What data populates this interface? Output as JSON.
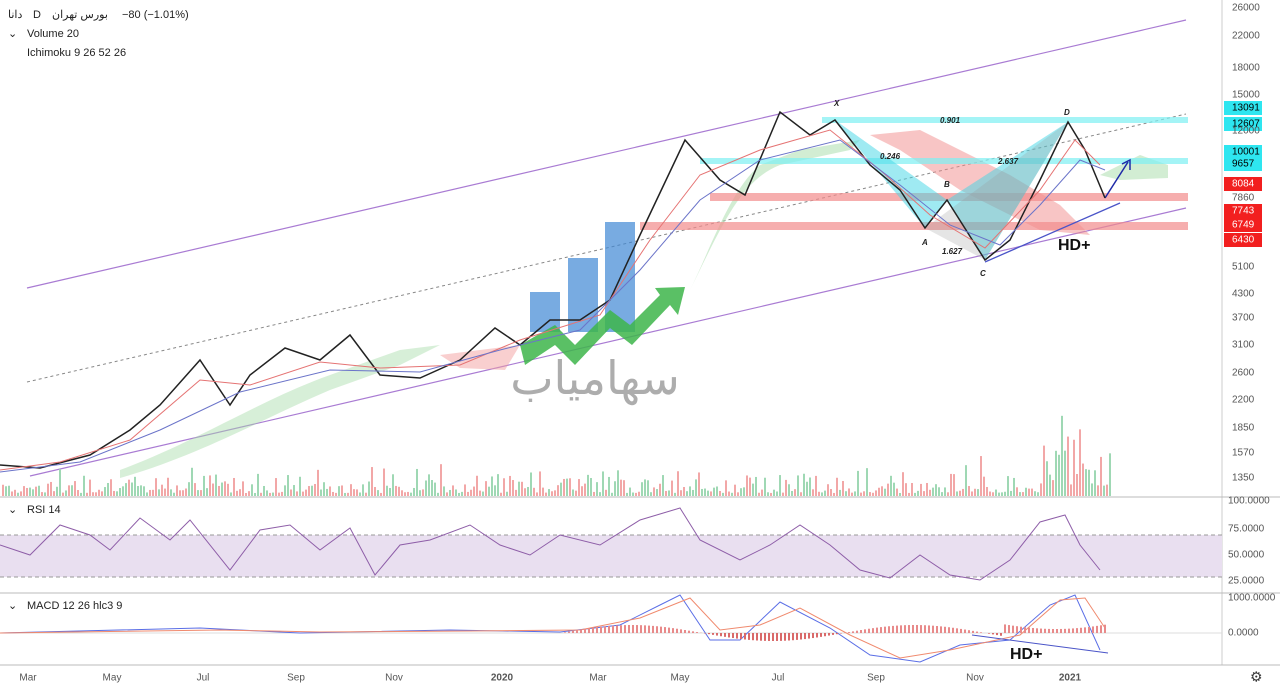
{
  "header": {
    "symbol": "دانا",
    "interval": "D",
    "exchange": "بورس تهران",
    "change": "−80 (−1.01%)"
  },
  "indicators": [
    "Volume 20",
    "Ichimoku 9 26 52 26"
  ],
  "price_axis": [
    {
      "label": "26000"
    },
    {
      "label": "22000"
    },
    {
      "label": "18000"
    },
    {
      "label": "15000"
    },
    {
      "label": "13091",
      "color": "#2ee6f0"
    },
    {
      "label": "12607",
      "color": "#2ee6f0"
    },
    {
      "label": "12000"
    },
    {
      "label": "10001",
      "color": "#2ee6f0"
    },
    {
      "label": "9657",
      "color": "#2ee6f0"
    },
    {
      "label": "8084",
      "color": "#f21f1f"
    },
    {
      "label": "7860"
    },
    {
      "label": "7743",
      "color": "#f21f1f"
    },
    {
      "label": "6749",
      "color": "#f21f1f"
    },
    {
      "label": "6430",
      "color": "#f21f1f"
    },
    {
      "label": "5100"
    },
    {
      "label": "4300"
    },
    {
      "label": "3700"
    },
    {
      "label": "3100"
    },
    {
      "label": "2600"
    },
    {
      "label": "2200"
    },
    {
      "label": "1850"
    },
    {
      "label": "1570"
    },
    {
      "label": "1350"
    }
  ],
  "annotations": {
    "x": "X",
    "a": "A",
    "b": "B",
    "c": "C",
    "d": "D",
    "r1": "0.901",
    "r2": "0.246",
    "r3": "2.637",
    "r4": "1.627",
    "pattern": "HD+"
  },
  "watermark": "سهامیاب",
  "rsi": {
    "label": "RSI 14",
    "axis": [
      "100.0000",
      "75.0000",
      "50.0000",
      "25.0000"
    ]
  },
  "macd": {
    "label": "MACD 12 26 hlc3 9",
    "axis": [
      "1000.0000",
      "0.0000"
    ],
    "annotation": "HD+"
  },
  "time_axis": [
    "Mar",
    "May",
    "Jul",
    "Sep",
    "Nov",
    "2020",
    "Mar",
    "May",
    "Jul",
    "Sep",
    "Nov",
    "2021"
  ]
}
